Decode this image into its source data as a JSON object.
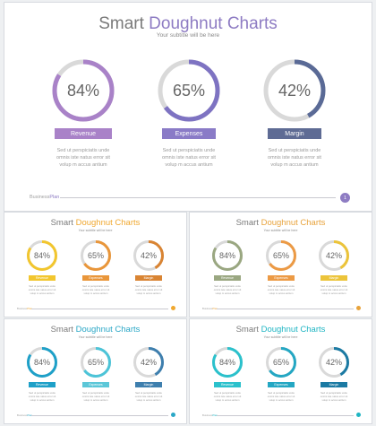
{
  "title_main": "Smart",
  "title_accent": "Doughnut Charts",
  "subtitle": "Your subtitle will be here",
  "description": "Sed ut perspiciatis unde omnis iste natus error sit volup m accus antium",
  "footer": {
    "business": "Business",
    "plan": "Plan",
    "page": "1"
  },
  "track_color": "#d9d9d9",
  "slides": [
    {
      "accent": "#8e7cc3",
      "charts": [
        {
          "label": "Revenue",
          "value": 84,
          "display": "84%",
          "ring_color": "#a982c8",
          "label_color": "#a982c8"
        },
        {
          "label": "Expenses",
          "value": 65,
          "display": "65%",
          "ring_color": "#7e73c2",
          "label_color": "#8a7bc7"
        },
        {
          "label": "Margin",
          "value": 42,
          "display": "42%",
          "ring_color": "#5a6a96",
          "label_color": "#5e6b94"
        }
      ]
    },
    {
      "accent": "#f0a830",
      "charts": [
        {
          "label": "Revenue",
          "value": 84,
          "display": "84%",
          "ring_color": "#f2c62e",
          "label_color": "#f2c62e"
        },
        {
          "label": "Expenses",
          "value": 65,
          "display": "65%",
          "ring_color": "#e9963a",
          "label_color": "#e9963a"
        },
        {
          "label": "Margin",
          "value": 42,
          "display": "42%",
          "ring_color": "#d98433",
          "label_color": "#d98433"
        }
      ]
    },
    {
      "accent": "#e8a33c",
      "charts": [
        {
          "label": "Revenue",
          "value": 84,
          "display": "84%",
          "ring_color": "#9aa781",
          "label_color": "#9aa781"
        },
        {
          "label": "Expenses",
          "value": 65,
          "display": "65%",
          "ring_color": "#ec9a45",
          "label_color": "#ec9a45"
        },
        {
          "label": "Margin",
          "value": 42,
          "display": "42%",
          "ring_color": "#ecc43a",
          "label_color": "#ecc43a"
        }
      ]
    },
    {
      "accent": "#2aa7c6",
      "charts": [
        {
          "label": "Revenue",
          "value": 84,
          "display": "84%",
          "ring_color": "#1ea0c8",
          "label_color": "#1ea0c8"
        },
        {
          "label": "Expenses",
          "value": 65,
          "display": "65%",
          "ring_color": "#4cc4d8",
          "label_color": "#5cc7d8"
        },
        {
          "label": "Margin",
          "value": 42,
          "display": "42%",
          "ring_color": "#3e7fae",
          "label_color": "#3e7fae"
        }
      ]
    },
    {
      "accent": "#1fb5c3",
      "charts": [
        {
          "label": "Revenue",
          "value": 84,
          "display": "84%",
          "ring_color": "#2bc1cc",
          "label_color": "#2bc1cc"
        },
        {
          "label": "Expenses",
          "value": 65,
          "display": "65%",
          "ring_color": "#24a7c3",
          "label_color": "#24a7c3"
        },
        {
          "label": "Margin",
          "value": 42,
          "display": "42%",
          "ring_color": "#1b7aa3",
          "label_color": "#1b7aa3"
        }
      ]
    }
  ]
}
